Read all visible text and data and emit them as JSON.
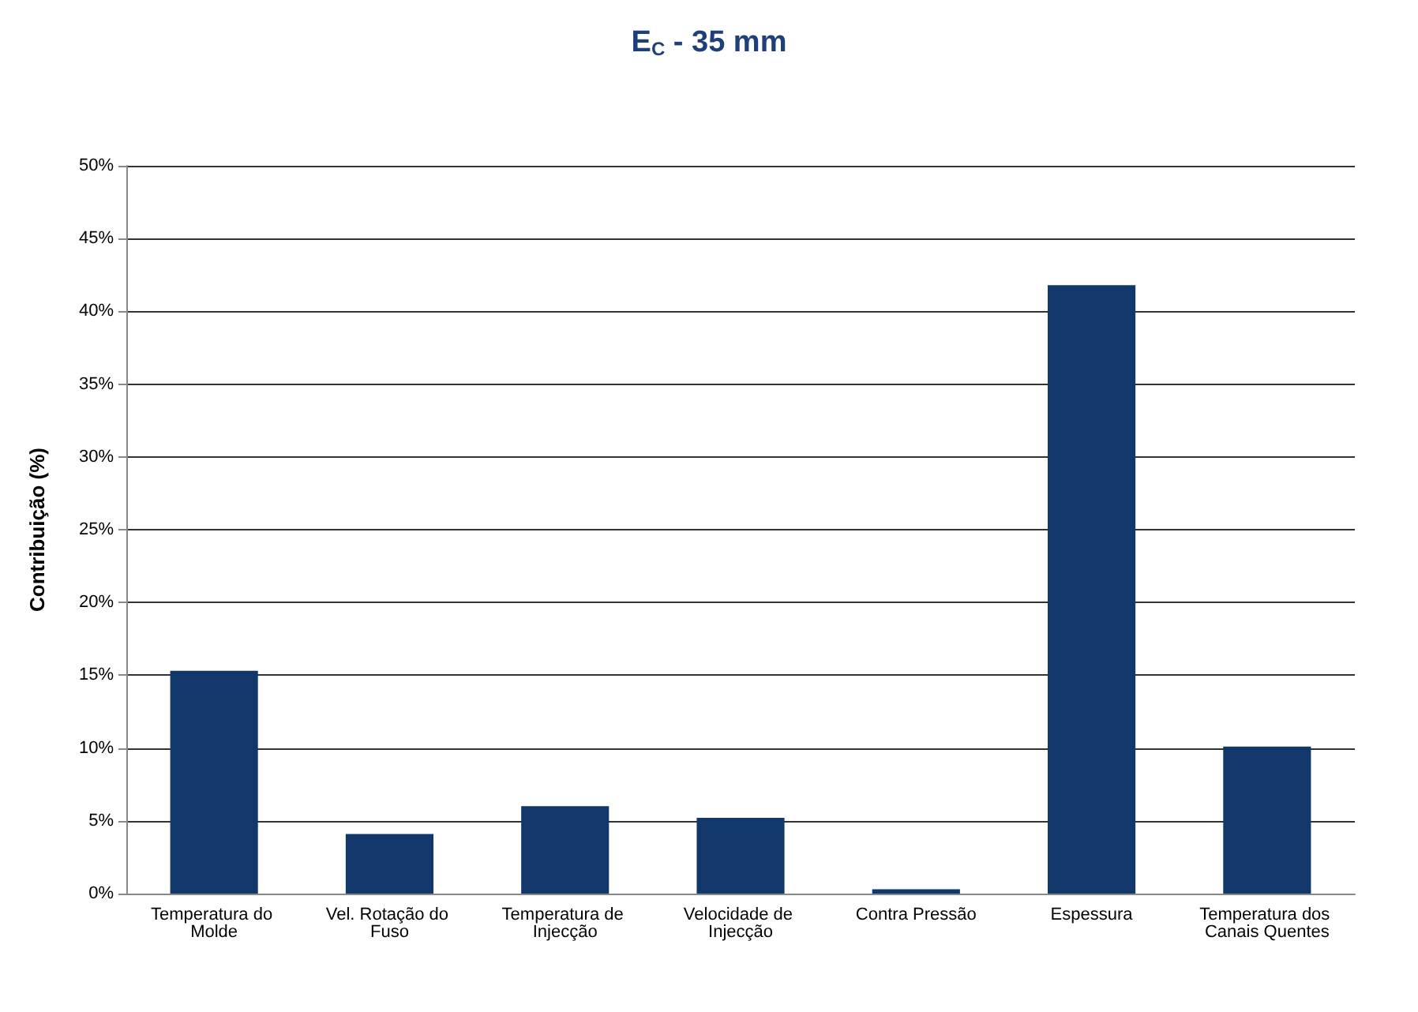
{
  "chart_data": {
    "type": "bar",
    "title": "E$_{C}$ - 35 mm",
    "ylabel": "Contribuição (%)",
    "categories": [
      "Temperatura do Molde",
      "Vel. Rotação do Fuso",
      "Temperatura de Injecção",
      "Velocidade de Injecção",
      "Contra Pressão",
      "Espessura",
      "Temperatura dos Canais Quentes"
    ],
    "values": [
      15.3,
      4.1,
      6.0,
      5.2,
      0.3,
      41.8,
      10.1
    ],
    "color": "#12386b",
    "ylim": [
      0,
      50
    ],
    "yticks": [
      {
        "value": 0,
        "label": "0%"
      },
      {
        "value": 5,
        "label": "5%"
      },
      {
        "value": 10,
        "label": "10%"
      },
      {
        "value": 15,
        "label": "15%"
      },
      {
        "value": 20,
        "label": "20%"
      },
      {
        "value": 25,
        "label": "25%"
      },
      {
        "value": 30,
        "label": "30%"
      },
      {
        "value": 35,
        "label": "35%"
      },
      {
        "value": 40,
        "label": "40%"
      },
      {
        "value": 45,
        "label": "45%"
      },
      {
        "value": 50,
        "label": "50%"
      }
    ],
    "grid": "y"
  }
}
